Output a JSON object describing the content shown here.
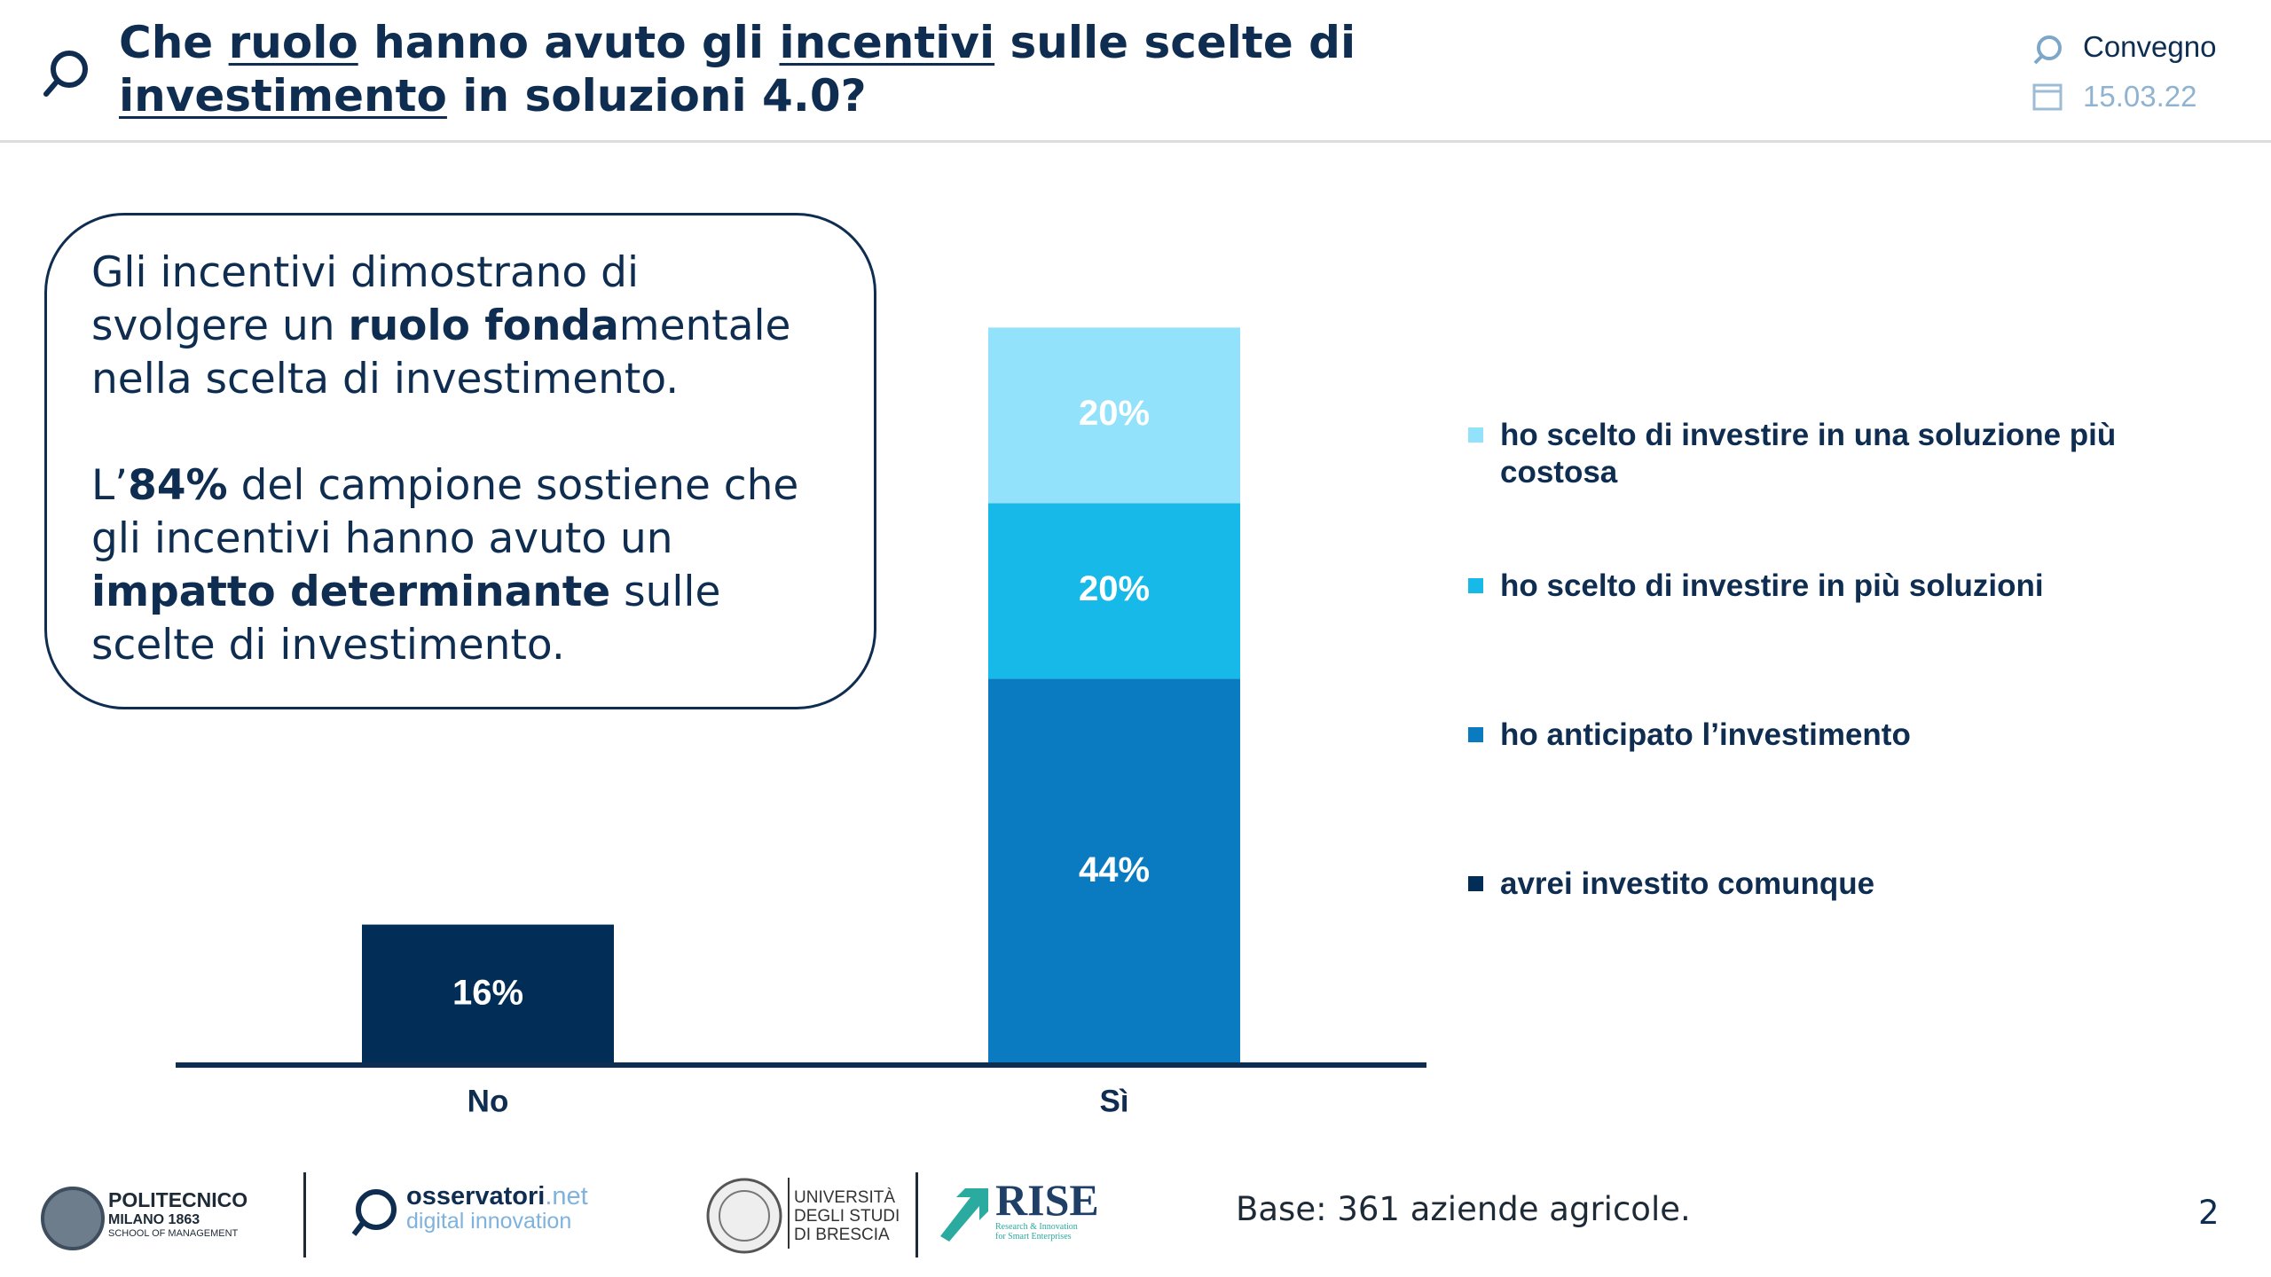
{
  "header": {
    "title": [
      {
        "text": "Che ",
        "underline": false
      },
      {
        "text": "ruolo",
        "underline": true
      },
      {
        "text": " hanno avuto gli ",
        "underline": false
      },
      {
        "text": "incentivi",
        "underline": true
      },
      {
        "text": " sulle scelte di ",
        "underline": false
      },
      {
        "text": "investimento",
        "underline": true
      },
      {
        "text": " in soluzioni 4.0?",
        "underline": false
      }
    ],
    "event": "Convegno",
    "date": "15.03.22"
  },
  "callout": {
    "paragraphs": [
      [
        {
          "text": "Gli incentivi dimostrano di svolgere un ",
          "bold": false
        },
        {
          "text": "ruolo fonda",
          "bold": true
        },
        {
          "text": "mentale nella scelta di investimento.",
          "bold": false
        }
      ],
      [
        {
          "text": "L’",
          "bold": false
        },
        {
          "text": "84%",
          "bold": true
        },
        {
          "text": " del campione sostiene che gli incentivi hanno avuto un ",
          "bold": false
        },
        {
          "text": "impatto determinante",
          "bold": true
        },
        {
          "text": " sulle scelte di investimento.",
          "bold": false
        }
      ]
    ]
  },
  "chart_data": {
    "type": "bar",
    "stacked": true,
    "categories": [
      "No",
      "Sì"
    ],
    "series": [
      {
        "name": "avrei investito comunque",
        "color": "#012d56",
        "values": [
          16,
          null
        ],
        "value_labels": [
          "16%",
          null
        ]
      },
      {
        "name": "ho anticipato l’investimento",
        "color": "#0a7bc1",
        "values": [
          null,
          44
        ],
        "value_labels": [
          null,
          "44%"
        ]
      },
      {
        "name": "ho scelto di investire in più soluzioni",
        "color": "#17b9e8",
        "values": [
          null,
          20
        ],
        "value_labels": [
          null,
          "20%"
        ]
      },
      {
        "name": "ho scelto di investire in una soluzione più costosa",
        "color": "#92e2fb",
        "values": [
          null,
          20
        ],
        "value_labels": [
          null,
          "20%"
        ]
      }
    ]
  },
  "footer": {
    "logos": {
      "polimi": [
        "POLITECNICO",
        "MILANO 1863",
        "SCHOOL OF MANAGEMENT"
      ],
      "osservatori": [
        "osservatori",
        ".net",
        "digital innovation"
      ],
      "unibs": [
        "UNIVERSITÀ",
        "DEGLI STUDI",
        "DI BRESCIA"
      ],
      "rise": [
        "RISE",
        "Research & Innovation",
        "for Smart Enterprises"
      ]
    },
    "base": "Base: 361 aziende agricole.",
    "page": "2"
  }
}
